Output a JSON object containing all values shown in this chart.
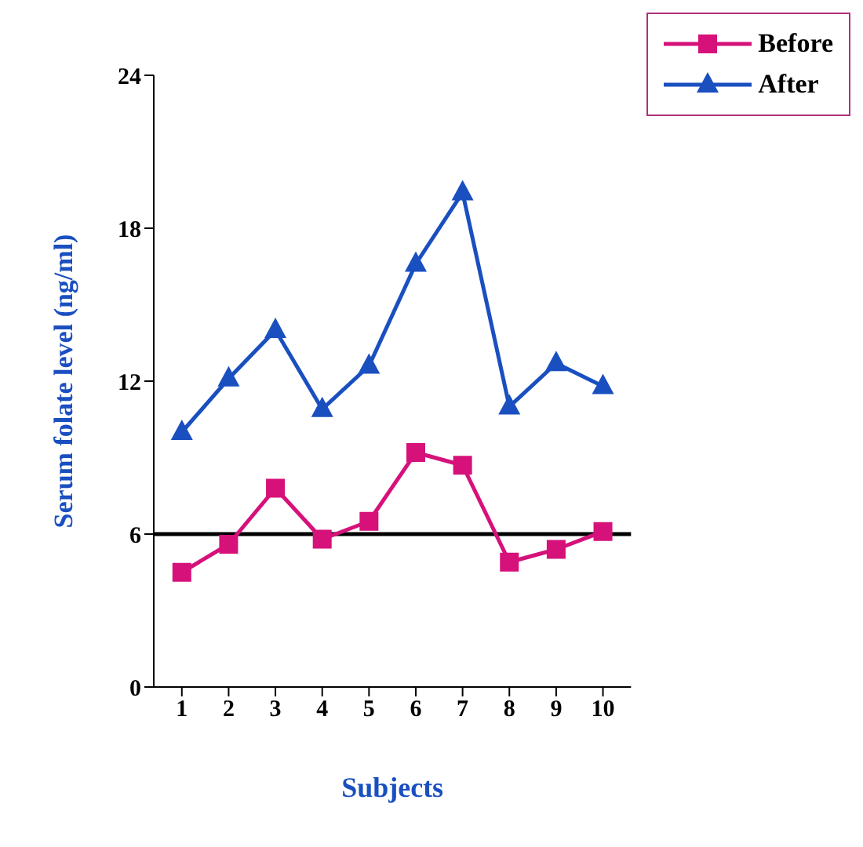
{
  "chart_data": {
    "type": "line",
    "xlabel": "Subjects",
    "ylabel": "Serum folate level (ng/ml)",
    "categories": [
      "1",
      "2",
      "3",
      "4",
      "5",
      "6",
      "7",
      "8",
      "9",
      "10"
    ],
    "series": [
      {
        "name": "Before",
        "color": "#d6117a",
        "marker": "square",
        "values": [
          4.5,
          5.6,
          7.8,
          5.8,
          6.5,
          9.2,
          8.7,
          4.9,
          5.4,
          6.1
        ]
      },
      {
        "name": "After",
        "color": "#1a4fc0",
        "marker": "triangle",
        "values": [
          10.0,
          12.1,
          14.0,
          10.9,
          12.6,
          16.6,
          19.4,
          11.0,
          12.7,
          11.8
        ]
      }
    ],
    "ylim": [
      0,
      24
    ],
    "yticks": [
      0,
      6,
      12,
      18,
      24
    ],
    "ref_lines": [
      {
        "axis": "y",
        "value": 6,
        "label": null,
        "color": "#000000"
      }
    ],
    "grid": false,
    "legend": "top right",
    "line_style": "solid"
  }
}
